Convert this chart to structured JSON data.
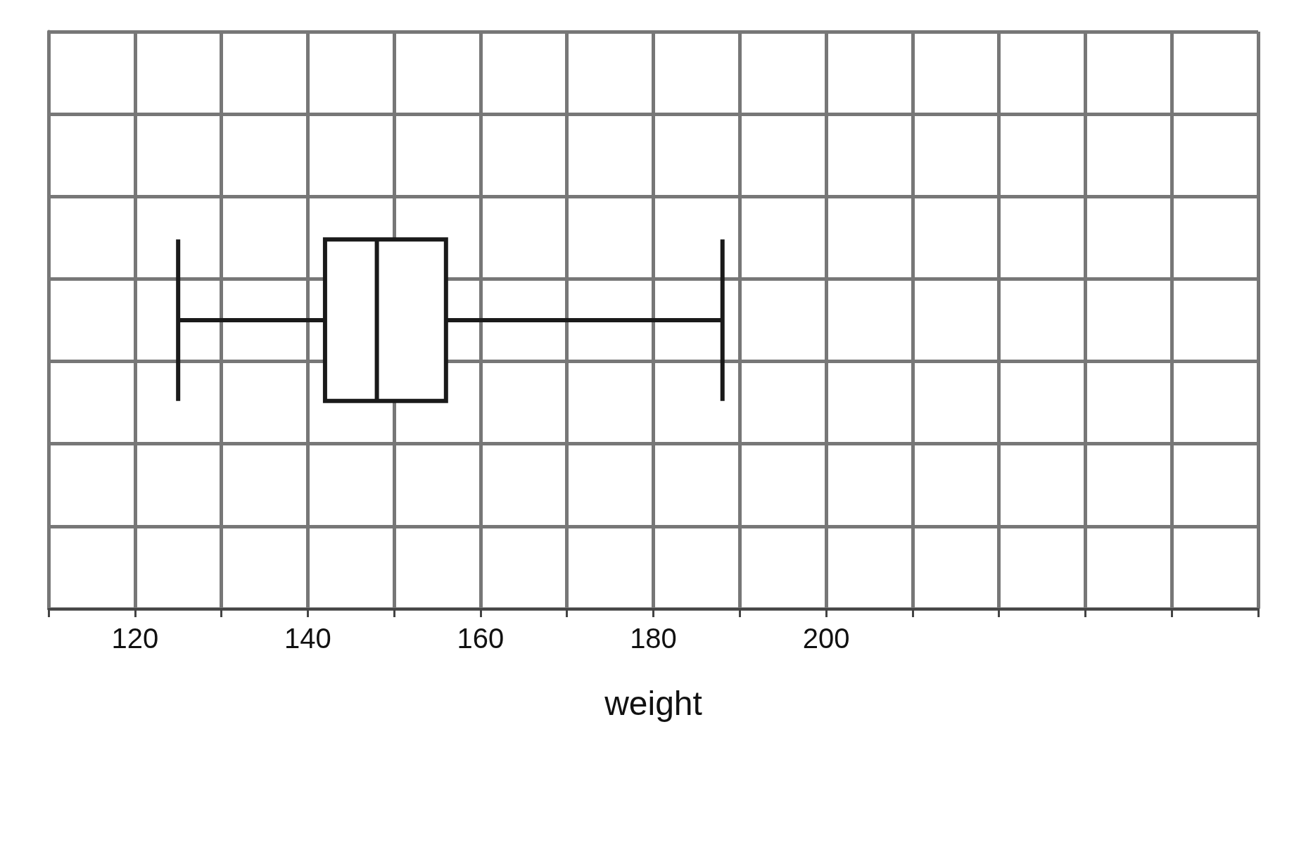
{
  "chart_data": {
    "type": "box",
    "orientation": "horizontal",
    "xlabel": "weight",
    "categories": [
      null
    ],
    "boxes": [
      {
        "low": 125,
        "q1": 142,
        "median": 148,
        "q3": 156,
        "high": 188
      }
    ],
    "color": "#1a1a1a",
    "xlim": [
      110,
      250
    ],
    "xticks": [
      {
        "value": 110,
        "label": null
      },
      120,
      {
        "value": 130,
        "label": null
      },
      140,
      {
        "value": 150,
        "label": null
      },
      160,
      {
        "value": 170,
        "label": null
      },
      180,
      {
        "value": 190,
        "label": null
      },
      200,
      {
        "value": 210,
        "label": null
      },
      {
        "value": 220,
        "label": null
      },
      {
        "value": 230,
        "label": null
      },
      {
        "value": 240,
        "label": null
      },
      {
        "value": 250,
        "label": null
      }
    ],
    "grid": true
  }
}
